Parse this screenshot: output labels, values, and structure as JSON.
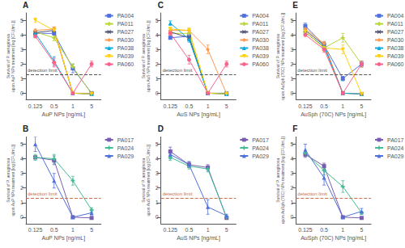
{
  "chart_data": [
    {
      "type": "line",
      "title": "A",
      "xlabel": "AuP NPs [ng/mL]",
      "ylabel": "Survival of P. aeruginosa\nupon AuP NPs treatment [log [CFU/mL]]",
      "categories": [
        "0.125",
        "0.5",
        "1",
        "5"
      ],
      "series": [
        {
          "name": "PA004",
          "marker": "square",
          "values": [
            4.1,
            4.1,
            1.7,
            0.0
          ],
          "errors": [
            0.1,
            0.3,
            0.3,
            0.1
          ]
        },
        {
          "name": "PA011",
          "marker": "plus",
          "values": [
            4.2,
            3.8,
            1.8,
            -0.05
          ],
          "errors": [
            0.1,
            0.2,
            0.2,
            0.05
          ]
        },
        {
          "name": "PA027",
          "marker": "x",
          "values": [
            4.15,
            4.3,
            0.0,
            -0.05
          ],
          "errors": [
            0.1,
            0.2,
            0.1,
            0.05
          ]
        },
        {
          "name": "PA030",
          "marker": "diamond",
          "values": [
            4.3,
            4.4,
            0.0,
            0.0
          ],
          "errors": [
            0.1,
            0.15,
            0.1,
            0.05
          ]
        },
        {
          "name": "PA038",
          "marker": "triangle-up",
          "values": [
            4.1,
            2.2,
            0.0,
            -0.05
          ],
          "errors": [
            0.1,
            0.3,
            0.1,
            0.05
          ]
        },
        {
          "name": "PA039",
          "marker": "triangle-down",
          "values": [
            5.0,
            4.3,
            0.0,
            -0.05
          ],
          "errors": [
            0.15,
            0.2,
            0.1,
            0.05
          ]
        },
        {
          "name": "PA060",
          "marker": "circle",
          "values": [
            3.9,
            2.1,
            0.0,
            2.0
          ],
          "errors": [
            0.1,
            0.3,
            0.1,
            0.2
          ]
        }
      ],
      "annotations": [
        {
          "text": "detection limit",
          "y": 1.3,
          "color": "#555555",
          "line_style": "dashed"
        }
      ],
      "ylim": [
        -0.45,
        5.5
      ],
      "yticks": [
        0,
        1,
        2,
        3,
        4,
        5
      ],
      "grid": false,
      "legend": "upper right"
    },
    {
      "type": "line",
      "title": "C",
      "xlabel": "AuS NPs [ng/mL]",
      "ylabel": "Survival of P. aeruginosa\nupon AuS NPs treatment [log [CFU/mL]]",
      "categories": [
        "0.125",
        "0.5",
        "1",
        "5"
      ],
      "series": [
        {
          "name": "PA004",
          "marker": "square",
          "values": [
            3.8,
            3.9,
            0.0,
            -0.05
          ],
          "errors": [
            0.1,
            0.2,
            0.1,
            0.05
          ]
        },
        {
          "name": "PA011",
          "marker": "plus",
          "values": [
            4.1,
            4.1,
            0.0,
            -0.05
          ],
          "errors": [
            0.1,
            0.2,
            0.1,
            0.05
          ]
        },
        {
          "name": "PA027",
          "marker": "x",
          "values": [
            4.2,
            3.8,
            0.0,
            0.0
          ],
          "errors": [
            0.1,
            0.15,
            0.1,
            0.05
          ]
        },
        {
          "name": "PA030",
          "marker": "diamond",
          "values": [
            4.3,
            4.3,
            3.0,
            -0.05
          ],
          "errors": [
            0.1,
            0.15,
            0.3,
            0.05
          ]
        },
        {
          "name": "PA038",
          "marker": "triangle-up",
          "values": [
            4.8,
            3.7,
            0.0,
            -0.05
          ],
          "errors": [
            0.15,
            0.2,
            0.1,
            0.05
          ]
        },
        {
          "name": "PA039",
          "marker": "triangle-down",
          "values": [
            4.4,
            4.3,
            0.0,
            -0.05
          ],
          "errors": [
            0.1,
            0.15,
            0.1,
            0.05
          ]
        },
        {
          "name": "PA060",
          "marker": "circle",
          "values": [
            4.1,
            2.3,
            0.0,
            2.0
          ],
          "errors": [
            0.1,
            0.3,
            0.1,
            0.2
          ]
        }
      ],
      "annotations": [
        {
          "text": "detection limit",
          "y": 1.3,
          "color": "#555555",
          "line_style": "dashed"
        }
      ],
      "ylim": [
        -0.45,
        5.5
      ],
      "yticks": [
        0,
        1,
        2,
        3,
        4,
        5
      ],
      "grid": false,
      "legend": "upper right"
    },
    {
      "type": "line",
      "title": "E",
      "xlabel": "AuSph (70C) NPs [ng/mL]",
      "ylabel": "Survival of P. aeruginosa\nupon AuSph (70C) NPs treatment [log [CFU/mL]]",
      "categories": [
        "0.125",
        "0.5",
        "1",
        "5"
      ],
      "series": [
        {
          "name": "PA004",
          "marker": "square",
          "values": [
            4.6,
            3.3,
            1.0,
            2.0
          ],
          "errors": [
            0.2,
            0.2,
            0.15,
            0.2
          ]
        },
        {
          "name": "PA011",
          "marker": "plus",
          "values": [
            4.2,
            3.1,
            3.8,
            2.0
          ],
          "errors": [
            0.1,
            0.2,
            0.3,
            0.2
          ]
        },
        {
          "name": "PA027",
          "marker": "x",
          "values": [
            4.3,
            3.3,
            0.0,
            -0.05
          ],
          "errors": [
            0.1,
            0.2,
            0.1,
            0.05
          ]
        },
        {
          "name": "PA030",
          "marker": "diamond",
          "values": [
            4.4,
            3.4,
            0.0,
            -0.05
          ],
          "errors": [
            0.1,
            0.15,
            0.1,
            0.05
          ]
        },
        {
          "name": "PA038",
          "marker": "triangle-up",
          "values": [
            4.15,
            3.2,
            0.0,
            -0.05
          ],
          "errors": [
            0.1,
            0.2,
            0.1,
            0.05
          ]
        },
        {
          "name": "PA039",
          "marker": "triangle-down",
          "values": [
            4.2,
            3.1,
            3.0,
            -0.05
          ],
          "errors": [
            0.1,
            0.2,
            0.3,
            0.05
          ]
        },
        {
          "name": "PA060",
          "marker": "circle",
          "values": [
            4.0,
            3.0,
            0.0,
            2.0
          ],
          "errors": [
            0.1,
            0.2,
            0.1,
            0.2
          ]
        }
      ],
      "annotations": [
        {
          "text": "detection limit",
          "y": 1.3,
          "color": "#555555",
          "line_style": "dashed"
        }
      ],
      "ylim": [
        -0.45,
        5.5
      ],
      "yticks": [
        0,
        1,
        2,
        3,
        4,
        5
      ],
      "grid": false,
      "legend": "upper right"
    },
    {
      "type": "line",
      "title": "B",
      "xlabel": "AuP NPs [ng/mL]",
      "ylabel": "Survival of P. aeruginosa\nupon AuP NPs treatment [log [CFU/mL]]",
      "categories": [
        "0.125",
        "0.5",
        "1",
        "5"
      ],
      "series": [
        {
          "name": "PA017",
          "marker": "square",
          "values": [
            4.1,
            3.9,
            0.0,
            -0.05
          ],
          "errors": [
            0.1,
            0.3,
            0.05,
            0.05
          ]
        },
        {
          "name": "PA024",
          "marker": "plus",
          "values": [
            4.1,
            4.0,
            2.5,
            0.5
          ],
          "errors": [
            0.2,
            0.3,
            0.3,
            0.15
          ]
        },
        {
          "name": "PA029",
          "marker": "triangle-up",
          "values": [
            5.0,
            2.5,
            0.0,
            0.3
          ],
          "errors": [
            0.5,
            0.5,
            0.05,
            0.15
          ]
        }
      ],
      "annotations": [
        {
          "text": "detection limit",
          "y": 1.3,
          "color": "#c87050",
          "line_style": "dashed"
        }
      ],
      "ylim": [
        -0.45,
        5.5
      ],
      "yticks": [
        0,
        1,
        2,
        3,
        4,
        5
      ],
      "grid": false,
      "legend": "upper right"
    },
    {
      "type": "line",
      "title": "D",
      "xlabel": "AuS NPs [ng/mL]",
      "ylabel": "Survival of P. aeruginosa\nupon AuS NPs treatment [log [CFU/mL]]",
      "categories": [
        "0.125",
        "0.5",
        "1",
        "5"
      ],
      "series": [
        {
          "name": "PA017",
          "marker": "square",
          "values": [
            4.5,
            3.6,
            3.4,
            -0.05
          ],
          "errors": [
            0.3,
            0.2,
            0.2,
            0.05
          ]
        },
        {
          "name": "PA024",
          "marker": "plus",
          "values": [
            4.1,
            3.5,
            3.3,
            0.0
          ],
          "errors": [
            0.2,
            0.2,
            0.2,
            0.05
          ]
        },
        {
          "name": "PA029",
          "marker": "triangle-up",
          "values": [
            4.3,
            3.6,
            0.7,
            0.1
          ],
          "errors": [
            0.3,
            0.2,
            0.5,
            0.1
          ]
        }
      ],
      "annotations": [
        {
          "text": "detection limit",
          "y": 1.3,
          "color": "#c87050",
          "line_style": "dashed"
        }
      ],
      "ylim": [
        -0.45,
        5.5
      ],
      "yticks": [
        0,
        1,
        2,
        3,
        4,
        5
      ],
      "grid": false,
      "legend": "upper right"
    },
    {
      "type": "line",
      "title": "F",
      "xlabel": "AuSph (70C) NPs [ng/mL]",
      "ylabel": "Survival of P. aeruginosa\nupon AuSph (70C) NPs treatment [log [CFU/mL]]",
      "categories": [
        "0.125",
        "0.5",
        "1",
        "5"
      ],
      "series": [
        {
          "name": "PA017",
          "marker": "square",
          "values": [
            4.3,
            3.5,
            0.0,
            -0.05
          ],
          "errors": [
            0.2,
            0.2,
            0.05,
            0.05
          ]
        },
        {
          "name": "PA024",
          "marker": "plus",
          "values": [
            4.4,
            3.2,
            2.1,
            0.3
          ],
          "errors": [
            0.2,
            0.3,
            0.4,
            0.1
          ]
        },
        {
          "name": "PA029",
          "marker": "triangle-up",
          "values": [
            4.6,
            2.7,
            0.0,
            0.4
          ],
          "errors": [
            0.4,
            0.5,
            0.05,
            0.2
          ]
        }
      ],
      "annotations": [
        {
          "text": "detection limit",
          "y": 1.3,
          "color": "#c87050",
          "line_style": "dashed"
        }
      ],
      "ylim": [
        -0.45,
        5.5
      ],
      "yticks": [
        0,
        1,
        2,
        3,
        4,
        5
      ],
      "grid": false,
      "legend": "upper right"
    }
  ]
}
